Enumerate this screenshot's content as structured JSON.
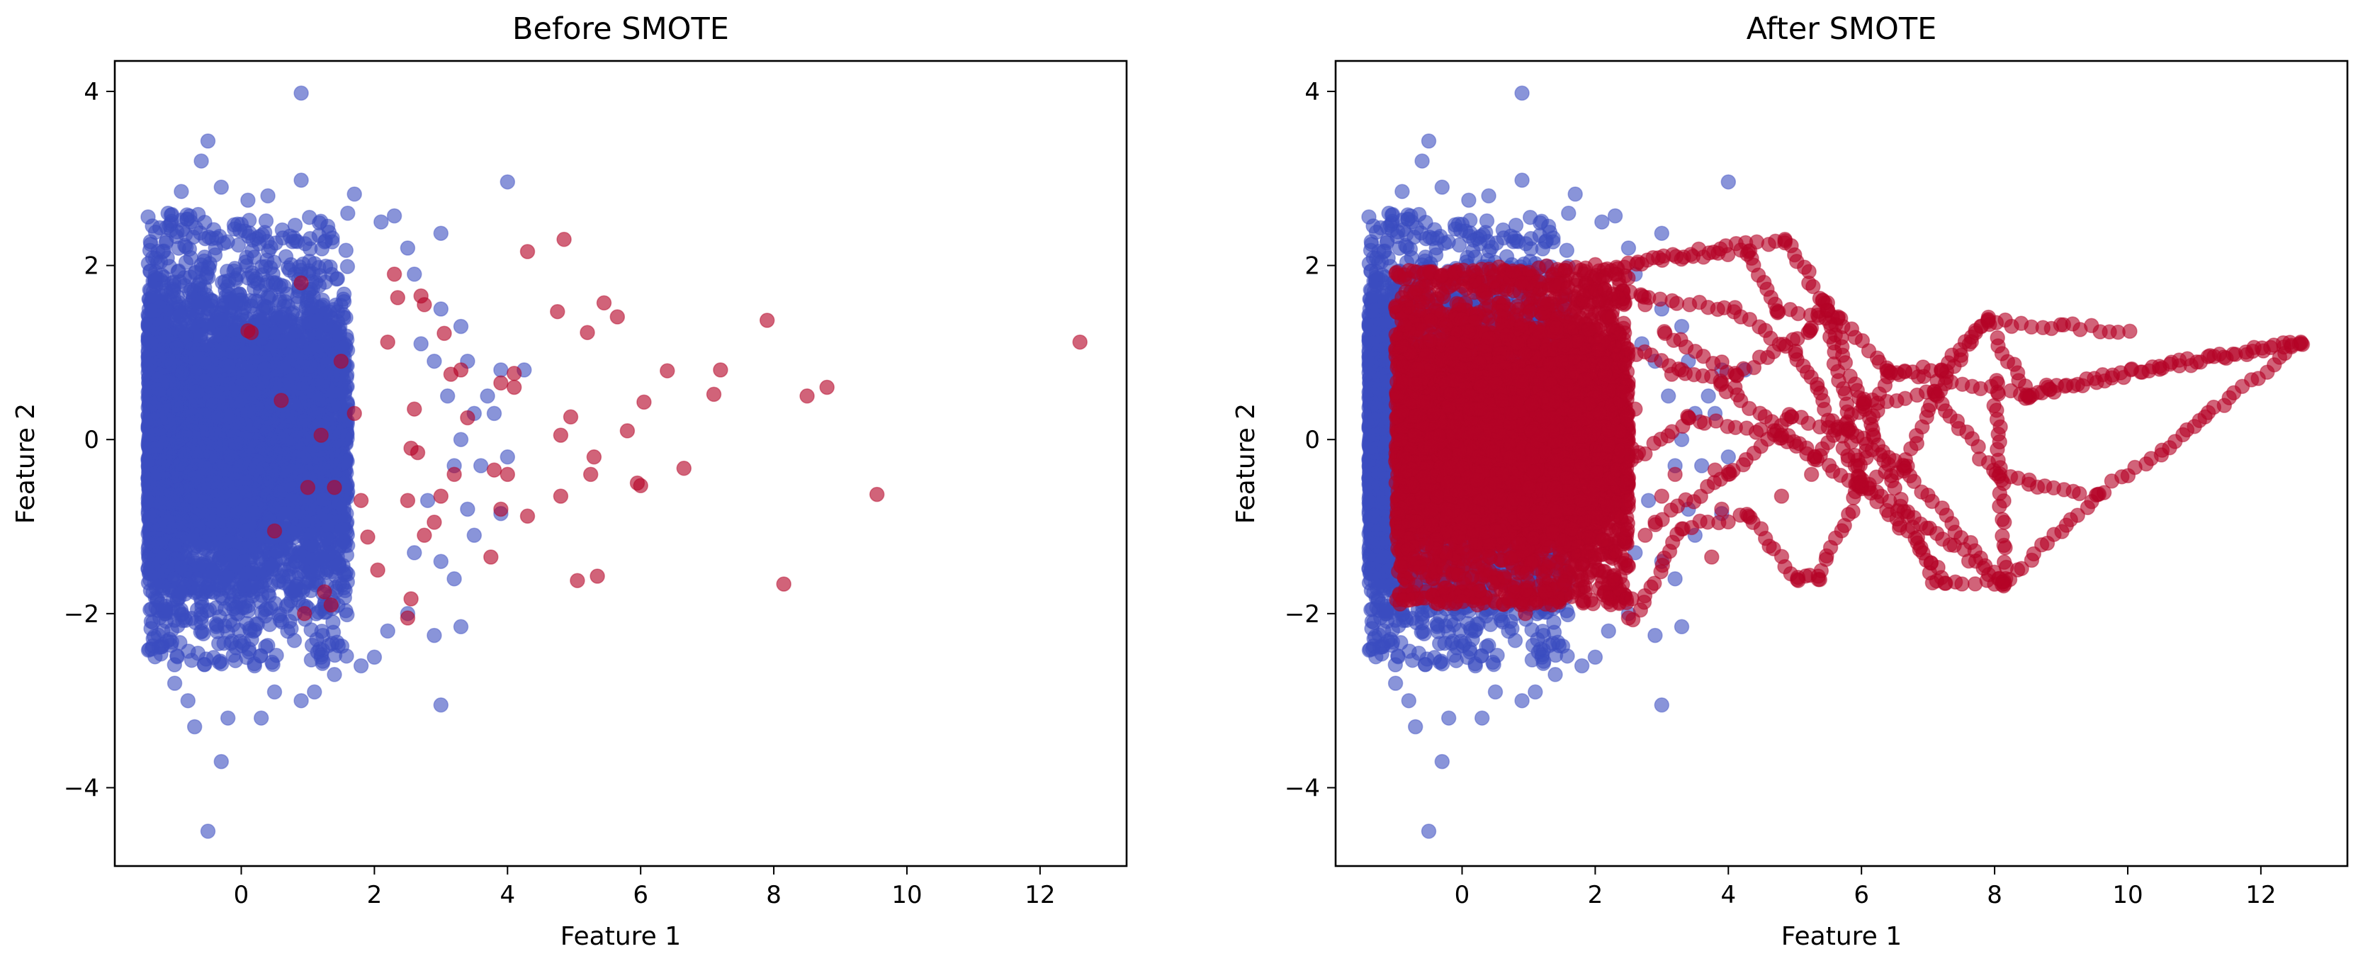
{
  "chart_data": [
    {
      "type": "scatter",
      "title": "Before SMOTE",
      "xlabel": "Feature 1",
      "ylabel": "Feature 2",
      "xlim": [
        -1.9,
        13.3
      ],
      "ylim": [
        -4.9,
        4.35
      ],
      "xticks": [
        0,
        2,
        4,
        6,
        8,
        10,
        12
      ],
      "yticks": [
        -4,
        -2,
        0,
        2,
        4
      ],
      "xtick_labels": [
        "0",
        "2",
        "4",
        "6",
        "8",
        "10",
        "12"
      ],
      "ytick_labels": [
        "−4",
        "−2",
        "0",
        "2",
        "4"
      ],
      "grid": false,
      "colors": {
        "majority": "#3b4cc0",
        "minority": "#b40426"
      },
      "majority_class": {
        "description_free": true,
        "cloud": {
          "x_min": -1.4,
          "x_max": 1.6,
          "y_min": -2.6,
          "y_max": 2.6,
          "count": 6000
        },
        "points": [
          [
            -0.5,
            -4.5
          ],
          [
            -0.3,
            -3.7
          ],
          [
            -0.5,
            3.43
          ],
          [
            0.9,
            3.98
          ],
          [
            4.0,
            2.96
          ],
          [
            -0.6,
            3.2
          ],
          [
            -0.7,
            -3.3
          ],
          [
            0.9,
            -3.0
          ],
          [
            1.1,
            -2.9
          ],
          [
            1.8,
            -2.6
          ],
          [
            3.0,
            -3.05
          ],
          [
            3.3,
            -2.15
          ],
          [
            2.9,
            -2.25
          ],
          [
            0.9,
            2.98
          ],
          [
            1.7,
            2.82
          ],
          [
            3.0,
            2.37
          ],
          [
            2.3,
            2.57
          ],
          [
            2.6,
            1.9
          ],
          [
            3.0,
            1.5
          ],
          [
            3.3,
            1.3
          ],
          [
            3.4,
            0.9
          ],
          [
            3.7,
            0.5
          ],
          [
            3.8,
            0.3
          ],
          [
            3.9,
            0.8
          ],
          [
            3.5,
            0.3
          ],
          [
            3.3,
            0.0
          ],
          [
            3.6,
            -0.3
          ],
          [
            3.4,
            -0.8
          ],
          [
            3.5,
            -1.1
          ],
          [
            3.9,
            -0.85
          ],
          [
            4.0,
            -0.2
          ],
          [
            3.2,
            -1.6
          ],
          [
            3.0,
            -1.4
          ],
          [
            2.5,
            -2.0
          ],
          [
            2.2,
            -2.2
          ],
          [
            2.7,
            1.1
          ],
          [
            2.6,
            -1.3
          ],
          [
            2.8,
            -0.7
          ],
          [
            3.1,
            0.5
          ],
          [
            3.2,
            -0.3
          ],
          [
            2.9,
            0.9
          ],
          [
            2.5,
            2.2
          ],
          [
            2.1,
            2.5
          ],
          [
            1.6,
            2.6
          ],
          [
            1.3,
            2.45
          ],
          [
            0.4,
            2.8
          ],
          [
            0.1,
            2.75
          ],
          [
            -0.3,
            2.9
          ],
          [
            -0.9,
            2.85
          ],
          [
            -1.1,
            2.6
          ],
          [
            0.3,
            -3.2
          ],
          [
            -0.2,
            -3.2
          ],
          [
            0.5,
            -2.9
          ],
          [
            1.4,
            -2.7
          ],
          [
            2.0,
            -2.5
          ],
          [
            -1.0,
            -2.8
          ],
          [
            -0.8,
            -3.0
          ],
          [
            0.2,
            -2.6
          ],
          [
            1.2,
            -2.5
          ],
          [
            4.25,
            0.8
          ]
        ]
      },
      "minority_class": {
        "points": [
          [
            12.6,
            1.12
          ],
          [
            9.55,
            -0.63
          ],
          [
            8.8,
            0.6
          ],
          [
            8.5,
            0.5
          ],
          [
            7.9,
            1.37
          ],
          [
            8.15,
            -1.66
          ],
          [
            7.2,
            0.8
          ],
          [
            7.1,
            0.52
          ],
          [
            6.65,
            -0.33
          ],
          [
            6.4,
            0.79
          ],
          [
            6.0,
            -0.53
          ],
          [
            5.95,
            -0.5
          ],
          [
            6.05,
            0.43
          ],
          [
            5.8,
            0.1
          ],
          [
            5.65,
            1.41
          ],
          [
            5.45,
            1.57
          ],
          [
            5.3,
            -0.2
          ],
          [
            5.25,
            -0.4
          ],
          [
            5.2,
            1.23
          ],
          [
            5.35,
            -1.57
          ],
          [
            5.05,
            -1.62
          ],
          [
            4.95,
            0.26
          ],
          [
            4.85,
            2.3
          ],
          [
            4.75,
            1.47
          ],
          [
            4.8,
            -0.65
          ],
          [
            4.8,
            0.05
          ],
          [
            4.3,
            2.16
          ],
          [
            4.3,
            -0.88
          ],
          [
            4.1,
            0.76
          ],
          [
            4.1,
            0.6
          ],
          [
            4.0,
            -0.4
          ],
          [
            3.9,
            0.65
          ],
          [
            3.8,
            -0.35
          ],
          [
            3.75,
            -1.35
          ],
          [
            3.9,
            -0.8
          ],
          [
            3.4,
            0.25
          ],
          [
            3.3,
            0.8
          ],
          [
            3.2,
            -0.4
          ],
          [
            3.15,
            0.75
          ],
          [
            3.0,
            -0.65
          ],
          [
            3.05,
            1.22
          ],
          [
            2.9,
            -0.95
          ],
          [
            2.75,
            1.55
          ],
          [
            2.7,
            1.65
          ],
          [
            2.65,
            -0.15
          ],
          [
            2.55,
            -0.1
          ],
          [
            2.6,
            0.35
          ],
          [
            2.5,
            -0.7
          ],
          [
            2.55,
            -1.83
          ],
          [
            2.5,
            -2.05
          ],
          [
            2.35,
            1.63
          ],
          [
            2.3,
            1.9
          ],
          [
            2.2,
            1.12
          ],
          [
            1.9,
            -1.12
          ],
          [
            1.8,
            -0.7
          ],
          [
            1.7,
            0.3
          ],
          [
            1.4,
            -0.55
          ],
          [
            1.35,
            -1.9
          ],
          [
            1.2,
            0.05
          ],
          [
            1.0,
            -0.55
          ],
          [
            0.9,
            1.8
          ],
          [
            0.95,
            -2.0
          ],
          [
            0.15,
            1.23
          ],
          [
            0.1,
            1.25
          ],
          [
            0.6,
            0.45
          ],
          [
            1.5,
            0.9
          ],
          [
            2.05,
            -1.5
          ],
          [
            0.5,
            -1.05
          ],
          [
            1.25,
            -1.75
          ],
          [
            2.75,
            -1.1
          ]
        ]
      }
    },
    {
      "type": "scatter",
      "title": "After SMOTE",
      "xlabel": "Feature 1",
      "ylabel": "Feature 2",
      "xlim": [
        -1.9,
        13.3
      ],
      "ylim": [
        -4.9,
        4.35
      ],
      "xticks": [
        0,
        2,
        4,
        6,
        8,
        10,
        12
      ],
      "yticks": [
        -4,
        -2,
        0,
        2,
        4
      ],
      "xtick_labels": [
        "0",
        "2",
        "4",
        "6",
        "8",
        "10",
        "12"
      ],
      "ytick_labels": [
        "−4",
        "−2",
        "0",
        "2",
        "4"
      ],
      "grid": false,
      "colors": {
        "majority": "#3b4cc0",
        "minority": "#b40426"
      },
      "majority_class": "same as Before SMOTE",
      "minority_class": {
        "cloud": {
          "x_min": -1.0,
          "x_max": 2.5,
          "y_min": -1.9,
          "y_max": 1.95,
          "count": 5000
        },
        "synthetic_paths": [
          [
            [
              -1.0,
              1.9
            ],
            [
              2.3,
              2.0
            ],
            [
              4.85,
              2.3
            ],
            [
              5.5,
              1.5
            ],
            [
              6.0,
              0.4
            ],
            [
              7.1,
              -1.62
            ],
            [
              8.15,
              -1.66
            ]
          ],
          [
            [
              2.5,
              2.05
            ],
            [
              4.3,
              2.16
            ],
            [
              4.75,
              1.47
            ],
            [
              5.65,
              1.41
            ],
            [
              6.4,
              0.79
            ],
            [
              7.2,
              0.8
            ],
            [
              7.9,
              1.37
            ],
            [
              8.5,
              0.5
            ],
            [
              8.8,
              0.6
            ],
            [
              12.6,
              1.12
            ],
            [
              11.2,
              0.3
            ],
            [
              10.5,
              -0.15
            ],
            [
              9.55,
              -0.63
            ],
            [
              8.15,
              -1.66
            ]
          ],
          [
            [
              2.6,
              -2.05
            ],
            [
              3.3,
              -1.0
            ],
            [
              4.3,
              -0.88
            ],
            [
              5.05,
              -1.62
            ],
            [
              5.35,
              -1.57
            ],
            [
              6.0,
              -0.53
            ],
            [
              6.65,
              -0.33
            ],
            [
              7.1,
              0.52
            ],
            [
              8.1,
              -0.5
            ],
            [
              8.15,
              -1.66
            ]
          ],
          [
            [
              2.2,
              1.12
            ],
            [
              3.9,
              0.65
            ],
            [
              5.3,
              -0.2
            ],
            [
              6.05,
              0.43
            ],
            [
              7.1,
              0.52
            ],
            [
              7.9,
              1.37
            ]
          ],
          [
            [
              1.8,
              -0.7
            ],
            [
              3.4,
              0.25
            ],
            [
              4.8,
              0.05
            ],
            [
              5.95,
              -0.5
            ],
            [
              6.4,
              0.79
            ],
            [
              8.5,
              0.5
            ],
            [
              10.5,
              0.85
            ],
            [
              12.6,
              1.12
            ]
          ],
          [
            [
              2.9,
              -0.95
            ],
            [
              4.0,
              -0.4
            ],
            [
              4.95,
              0.26
            ],
            [
              5.8,
              0.1
            ],
            [
              6.65,
              -0.33
            ],
            [
              8.15,
              -1.66
            ]
          ],
          [
            [
              3.05,
              1.22
            ],
            [
              4.1,
              0.76
            ],
            [
              5.2,
              1.23
            ],
            [
              5.45,
              1.57
            ],
            [
              6.0,
              -0.53
            ],
            [
              7.0,
              -1.0
            ],
            [
              8.15,
              -1.66
            ]
          ],
          [
            [
              0.9,
              1.8
            ],
            [
              2.7,
              1.65
            ],
            [
              4.1,
              1.5
            ],
            [
              5.0,
              1.0
            ],
            [
              5.3,
              0.6
            ],
            [
              6.0,
              -0.5
            ],
            [
              6.6,
              -1.0
            ],
            [
              7.3,
              -1.65
            ]
          ],
          [
            [
              8.0,
              1.35
            ],
            [
              9.0,
              1.3
            ],
            [
              10.0,
              1.25
            ]
          ],
          [
            [
              8.0,
              0.7
            ],
            [
              8.1,
              -0.4
            ],
            [
              8.5,
              -0.5
            ],
            [
              9.3,
              -0.62
            ]
          ]
        ]
      }
    }
  ]
}
